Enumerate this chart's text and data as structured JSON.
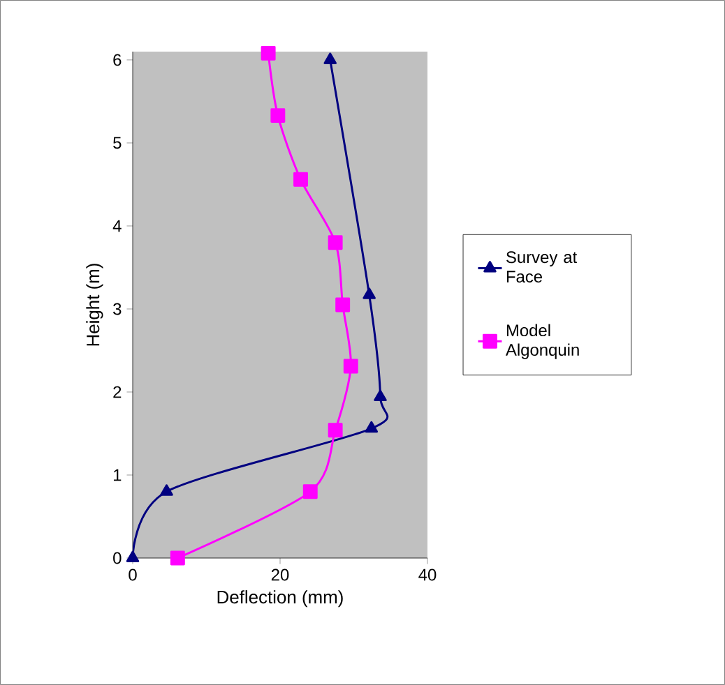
{
  "chart_data": {
    "type": "line",
    "xlabel": "Deflection (mm)",
    "ylabel": "Height (m)",
    "xlim": [
      0,
      40
    ],
    "xticks": [
      0,
      20,
      40
    ],
    "ylim": [
      0,
      6.1
    ],
    "yticks": [
      0,
      1,
      2,
      3,
      4,
      5,
      6
    ],
    "legend": "right",
    "grid": false,
    "line_style": "solid",
    "series": [
      {
        "name": "Survey at Face",
        "color": "#000080",
        "marker": "triangle",
        "x": [
          0,
          4.6,
          32.4,
          33.6,
          32.1,
          26.8
        ],
        "values": [
          0,
          0.8,
          1.56,
          1.94,
          3.17,
          6.0
        ]
      },
      {
        "name": "Model Algonquin",
        "color": "#ff00ff",
        "marker": "square",
        "x": [
          6.1,
          24.1,
          27.5,
          29.6,
          28.5,
          27.5,
          22.8,
          19.7,
          18.4
        ],
        "values": [
          0,
          0.8,
          1.54,
          2.31,
          3.05,
          3.8,
          4.56,
          5.33,
          6.08
        ]
      }
    ]
  }
}
